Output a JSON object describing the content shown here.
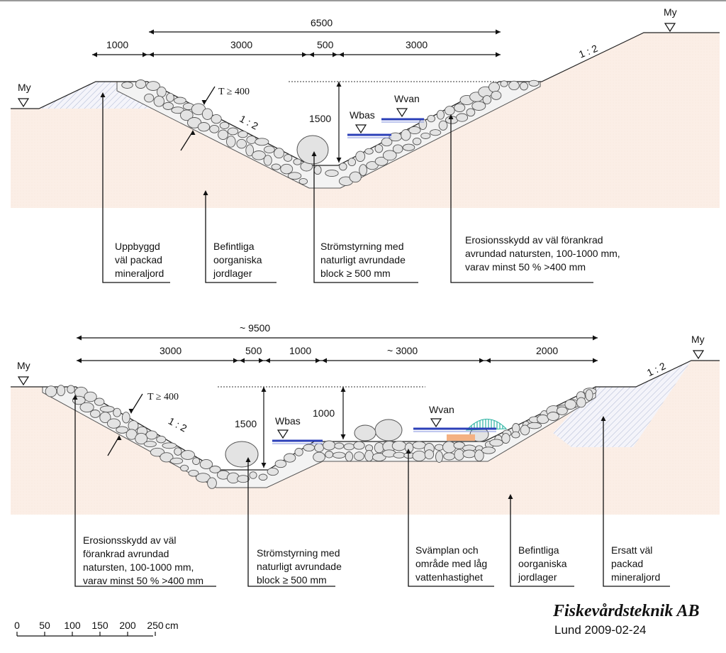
{
  "top_section": {
    "dims": {
      "total": "6500",
      "left_crest": "1000",
      "left_slope": "3000",
      "bottom": "500",
      "right_slope": "3000",
      "depth": "1500"
    },
    "slope_right": "1 : 2",
    "slope_left": "1 : 2",
    "stone_size": "T ≥ 400",
    "water": {
      "wbas": "Wbas",
      "wvan": "Wvan"
    },
    "ground_left": "My",
    "ground_right": "My",
    "annotations": [
      [
        "Uppbyggd",
        "väl packad",
        "mineraljord"
      ],
      [
        "Befintliga",
        "oorganiska",
        "jordlager"
      ],
      [
        "Strömstyrning med",
        "naturligt avrundade",
        "block ≥  500 mm"
      ],
      [
        "Erosionsskydd av väl förankrad",
        "avrundad natursten, 100-1000 mm,",
        "varav minst 50 % >400 mm"
      ]
    ]
  },
  "bottom_section": {
    "dims": {
      "total": "~ 9500",
      "left_slope": "3000",
      "bottom": "500",
      "step": "1000",
      "mid": "~ 3000",
      "right": "2000",
      "depth": "1500",
      "depth2": "1000"
    },
    "slope_right": "1 : 2",
    "slope_left": "1 : 2",
    "stone_size": "T ≥ 400",
    "water": {
      "wbas": "Wbas",
      "wvan": "Wvan"
    },
    "ground_left": "My",
    "ground_right": "My",
    "annotations": [
      [
        "Erosionsskydd av väl",
        "förankrad avrundad",
        "natursten, 100-1000 mm,",
        "varav minst 50 % >400 mm"
      ],
      [
        "Strömstyrning med",
        "naturligt avrundade",
        "block ≥  500 mm"
      ],
      [
        "Svämplan och",
        "område med låg",
        "vattenhastighet"
      ],
      [
        "Befintliga",
        "oorganiska",
        "jordlager"
      ],
      [
        "Ersatt väl",
        "packad",
        "mineraljord"
      ]
    ]
  },
  "scale_bar": {
    "ticks": [
      "0",
      "50",
      "100",
      "150",
      "200",
      "250"
    ],
    "unit": "cm"
  },
  "footer": {
    "company": "Fiskevårdsteknik AB",
    "place_date": "Lund 2009-02-24"
  },
  "colors": {
    "soil": "#fbeee6",
    "fill_hatch": "#9aa6c8",
    "stone": "#e3e3e3",
    "water": "#2b3fb8"
  }
}
